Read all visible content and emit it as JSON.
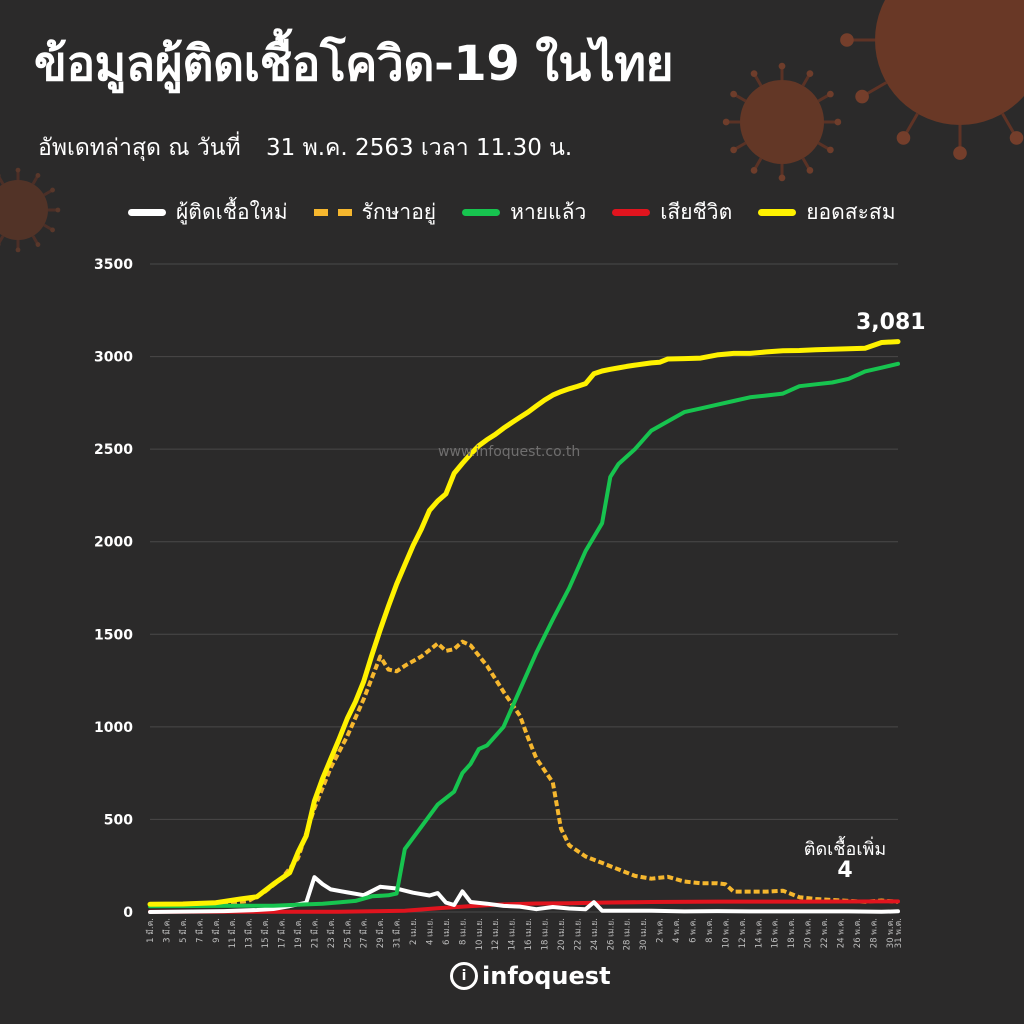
{
  "title": "ข้อมูลผู้ติดเชื้อโควิด-19 ในไทย",
  "subtitle_prefix": "อัพเดทล่าสุด ณ วันที่",
  "subtitle_date": "31 พ.ค. 2563 เวลา 11.30 น.",
  "watermark": "www.infoquest.co.th",
  "logo_text": "infoquest",
  "colors": {
    "background": "#2b2a2a",
    "new_cases": "#ffffff",
    "active": "#f6b72e",
    "recovered": "#17c44f",
    "deaths": "#e1141e",
    "cumulative": "#fff200"
  },
  "annotations": {
    "total_value": "3,081",
    "new_label": "ติดเชื้อเพิ่ม",
    "new_value": "4"
  },
  "chart_data": {
    "type": "line",
    "title": "",
    "xlabel": "",
    "ylabel": "",
    "ylim": [
      0,
      3500
    ],
    "yticks": [
      0,
      500,
      1000,
      1500,
      2000,
      2500,
      3000,
      3500
    ],
    "grid": true,
    "legend_position": "top",
    "x_tick_labels": [
      "1 มี.ค.",
      "3 มี.ค.",
      "5 มี.ค.",
      "7 มี.ค.",
      "9 มี.ค.",
      "11 มี.ค.",
      "13 มี.ค.",
      "15 มี.ค.",
      "17 มี.ค.",
      "19 มี.ค.",
      "21 มี.ค.",
      "23 มี.ค.",
      "25 มี.ค.",
      "27 มี.ค.",
      "29 มี.ค.",
      "31 มี.ค.",
      "2 เม.ย.",
      "4 เม.ย.",
      "6 เม.ย.",
      "8 เม.ย.",
      "10 เม.ย.",
      "12 เม.ย.",
      "14 เม.ย.",
      "16 เม.ย.",
      "18 เม.ย.",
      "20 เม.ย.",
      "22 เม.ย.",
      "24 เม.ย.",
      "26 เม.ย.",
      "28 เม.ย.",
      "30 เม.ย.",
      "2 พ.ค.",
      "4 พ.ค.",
      "6 พ.ค.",
      "8 พ.ค.",
      "10 พ.ค.",
      "12 พ.ค.",
      "14 พ.ค.",
      "16 พ.ค.",
      "18 พ.ค.",
      "20 พ.ค.",
      "22 พ.ค.",
      "24 พ.ค.",
      "26 พ.ค.",
      "28 พ.ค.",
      "30 พ.ค.",
      "31 พ.ค."
    ],
    "x_tick_days": [
      1,
      3,
      5,
      7,
      9,
      11,
      13,
      15,
      17,
      19,
      21,
      23,
      25,
      27,
      29,
      31,
      33,
      35,
      37,
      39,
      41,
      43,
      45,
      47,
      49,
      51,
      53,
      55,
      57,
      59,
      61,
      63,
      65,
      67,
      69,
      71,
      73,
      75,
      77,
      79,
      81,
      83,
      85,
      87,
      89,
      91,
      92
    ],
    "series": [
      {
        "name": "ผู้ติดเชื้อใหม่",
        "key": "new_cases",
        "style": "solid",
        "points": [
          [
            1,
            0
          ],
          [
            10,
            5
          ],
          [
            14,
            11
          ],
          [
            16,
            16
          ],
          [
            18,
            32
          ],
          [
            20,
            50
          ],
          [
            21,
            188
          ],
          [
            22,
            150
          ],
          [
            23,
            122
          ],
          [
            25,
            106
          ],
          [
            27,
            91
          ],
          [
            29,
            136
          ],
          [
            31,
            127
          ],
          [
            33,
            104
          ],
          [
            35,
            89
          ],
          [
            36,
            102
          ],
          [
            37,
            51
          ],
          [
            38,
            38
          ],
          [
            39,
            111
          ],
          [
            40,
            54
          ],
          [
            42,
            45
          ],
          [
            44,
            33
          ],
          [
            46,
            29
          ],
          [
            48,
            15
          ],
          [
            50,
            27
          ],
          [
            52,
            19
          ],
          [
            54,
            15
          ],
          [
            55,
            53
          ],
          [
            56,
            7
          ],
          [
            58,
            7
          ],
          [
            62,
            7
          ],
          [
            66,
            3
          ],
          [
            70,
            5
          ],
          [
            74,
            3
          ],
          [
            78,
            3
          ],
          [
            82,
            3
          ],
          [
            86,
            3
          ],
          [
            90,
            1
          ],
          [
            92,
            4
          ]
        ]
      },
      {
        "name": "รักษาอยู่",
        "key": "active",
        "style": "dashed",
        "points": [
          [
            1,
            40
          ],
          [
            10,
            45
          ],
          [
            13,
            60
          ],
          [
            15,
            110
          ],
          [
            17,
            180
          ],
          [
            19,
            290
          ],
          [
            21,
            560
          ],
          [
            23,
            780
          ],
          [
            25,
            950
          ],
          [
            27,
            1150
          ],
          [
            29,
            1380
          ],
          [
            30,
            1310
          ],
          [
            31,
            1300
          ],
          [
            32,
            1330
          ],
          [
            34,
            1380
          ],
          [
            36,
            1450
          ],
          [
            37,
            1410
          ],
          [
            38,
            1420
          ],
          [
            39,
            1460
          ],
          [
            40,
            1440
          ],
          [
            42,
            1330
          ],
          [
            44,
            1190
          ],
          [
            46,
            1060
          ],
          [
            47,
            940
          ],
          [
            48,
            830
          ],
          [
            50,
            700
          ],
          [
            51,
            450
          ],
          [
            52,
            360
          ],
          [
            54,
            300
          ],
          [
            56,
            265
          ],
          [
            58,
            230
          ],
          [
            60,
            195
          ],
          [
            62,
            180
          ],
          [
            64,
            190
          ],
          [
            66,
            165
          ],
          [
            68,
            155
          ],
          [
            70,
            155
          ],
          [
            71,
            150
          ],
          [
            72,
            110
          ],
          [
            74,
            110
          ],
          [
            76,
            110
          ],
          [
            78,
            115
          ],
          [
            80,
            80
          ],
          [
            82,
            70
          ],
          [
            84,
            65
          ],
          [
            86,
            60
          ],
          [
            88,
            55
          ],
          [
            90,
            62
          ],
          [
            92,
            55
          ]
        ]
      },
      {
        "name": "หายแล้ว",
        "key": "recovered",
        "style": "solid",
        "points": [
          [
            1,
            31
          ],
          [
            12,
            34
          ],
          [
            16,
            34
          ],
          [
            20,
            41
          ],
          [
            22,
            45
          ],
          [
            24,
            52
          ],
          [
            26,
            60
          ],
          [
            28,
            85
          ],
          [
            30,
            90
          ],
          [
            31,
            100
          ],
          [
            32,
            340
          ],
          [
            34,
            460
          ],
          [
            36,
            580
          ],
          [
            38,
            650
          ],
          [
            39,
            750
          ],
          [
            40,
            800
          ],
          [
            41,
            880
          ],
          [
            42,
            900
          ],
          [
            44,
            1000
          ],
          [
            46,
            1200
          ],
          [
            48,
            1400
          ],
          [
            50,
            1580
          ],
          [
            52,
            1750
          ],
          [
            54,
            1950
          ],
          [
            56,
            2100
          ],
          [
            57,
            2350
          ],
          [
            58,
            2420
          ],
          [
            60,
            2500
          ],
          [
            62,
            2600
          ],
          [
            64,
            2650
          ],
          [
            66,
            2700
          ],
          [
            68,
            2720
          ],
          [
            70,
            2740
          ],
          [
            72,
            2760
          ],
          [
            74,
            2780
          ],
          [
            76,
            2790
          ],
          [
            78,
            2800
          ],
          [
            80,
            2840
          ],
          [
            82,
            2850
          ],
          [
            84,
            2860
          ],
          [
            86,
            2880
          ],
          [
            88,
            2920
          ],
          [
            90,
            2940
          ],
          [
            92,
            2961
          ]
        ]
      },
      {
        "name": "เสียชีวิต",
        "key": "deaths",
        "style": "solid",
        "points": [
          [
            1,
            1
          ],
          [
            20,
            1
          ],
          [
            24,
            1
          ],
          [
            28,
            4
          ],
          [
            32,
            7
          ],
          [
            36,
            20
          ],
          [
            40,
            32
          ],
          [
            44,
            41
          ],
          [
            48,
            46
          ],
          [
            52,
            47
          ],
          [
            56,
            51
          ],
          [
            62,
            54
          ],
          [
            70,
            56
          ],
          [
            80,
            56
          ],
          [
            92,
            57
          ]
        ]
      },
      {
        "name": "ยอดสะสม",
        "key": "cumulative",
        "style": "solid",
        "points": [
          [
            1,
            42
          ],
          [
            5,
            43
          ],
          [
            9,
            50
          ],
          [
            12,
            70
          ],
          [
            14,
            82
          ],
          [
            16,
            150
          ],
          [
            18,
            212
          ],
          [
            19,
            322
          ],
          [
            20,
            411
          ],
          [
            21,
            599
          ],
          [
            22,
            721
          ],
          [
            23,
            827
          ],
          [
            24,
            934
          ],
          [
            25,
            1045
          ],
          [
            26,
            1136
          ],
          [
            27,
            1245
          ],
          [
            28,
            1388
          ],
          [
            29,
            1524
          ],
          [
            30,
            1651
          ],
          [
            31,
            1771
          ],
          [
            32,
            1875
          ],
          [
            33,
            1978
          ],
          [
            34,
            2067
          ],
          [
            35,
            2169
          ],
          [
            36,
            2220
          ],
          [
            37,
            2258
          ],
          [
            38,
            2369
          ],
          [
            39,
            2423
          ],
          [
            40,
            2473
          ],
          [
            41,
            2518
          ],
          [
            42,
            2551
          ],
          [
            43,
            2579
          ],
          [
            44,
            2613
          ],
          [
            45,
            2643
          ],
          [
            46,
            2672
          ],
          [
            47,
            2700
          ],
          [
            48,
            2733
          ],
          [
            49,
            2765
          ],
          [
            50,
            2792
          ],
          [
            51,
            2811
          ],
          [
            52,
            2826
          ],
          [
            53,
            2839
          ],
          [
            54,
            2854
          ],
          [
            55,
            2907
          ],
          [
            56,
            2922
          ],
          [
            57,
            2931
          ],
          [
            58,
            2939
          ],
          [
            59,
            2947
          ],
          [
            60,
            2954
          ],
          [
            61,
            2960
          ],
          [
            62,
            2966
          ],
          [
            63,
            2969
          ],
          [
            64,
            2987
          ],
          [
            66,
            2989
          ],
          [
            68,
            2992
          ],
          [
            70,
            3009
          ],
          [
            72,
            3017
          ],
          [
            74,
            3017
          ],
          [
            76,
            3025
          ],
          [
            78,
            3031
          ],
          [
            80,
            3033
          ],
          [
            82,
            3037
          ],
          [
            84,
            3040
          ],
          [
            86,
            3042
          ],
          [
            88,
            3045
          ],
          [
            90,
            3076
          ],
          [
            92,
            3081
          ]
        ]
      }
    ]
  }
}
